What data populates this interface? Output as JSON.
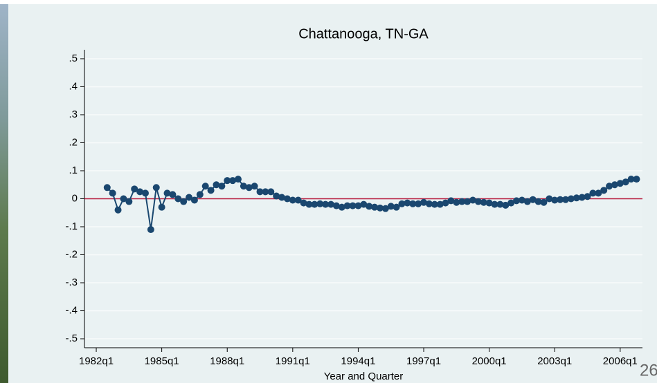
{
  "chart_data": {
    "type": "line",
    "title": "Chattanooga, TN-GA",
    "x_label": "Year and Quarter",
    "page_number": "26",
    "color": "#1a476f",
    "grid": true,
    "reference_line": {
      "value": 0,
      "color": "#b5173a"
    },
    "xlim": [
      1981.46,
      2007.02
    ],
    "ylim": [
      -0.532,
      0.532
    ],
    "xticks": [
      {
        "value": 1982,
        "label": "1982q1"
      },
      {
        "value": 1985,
        "label": "1985q1"
      },
      {
        "value": 1988,
        "label": "1988q1"
      },
      {
        "value": 1991,
        "label": "1991q1"
      },
      {
        "value": 1994,
        "label": "1994q1"
      },
      {
        "value": 1997,
        "label": "1997q1"
      },
      {
        "value": 2000,
        "label": "2000q1"
      },
      {
        "value": 2003,
        "label": "2003q1"
      },
      {
        "value": 2006,
        "label": "2006q1"
      }
    ],
    "yticks": [
      {
        "value": 0.5,
        "label": ".5"
      },
      {
        "value": 0.4,
        "label": ".4"
      },
      {
        "value": 0.3,
        "label": ".3"
      },
      {
        "value": 0.2,
        "label": ".2"
      },
      {
        "value": 0.1,
        "label": ".1"
      },
      0,
      {
        "value": -0.1,
        "label": "-.1"
      },
      {
        "value": -0.2,
        "label": "-.2"
      },
      {
        "value": -0.3,
        "label": "-.3"
      },
      {
        "value": -0.4,
        "label": "-.4"
      },
      {
        "value": -0.5,
        "label": "-.5"
      }
    ],
    "x": [
      1982.5,
      1982.75,
      1983,
      1983.25,
      1983.5,
      1983.75,
      1984,
      1984.25,
      1984.5,
      1984.75,
      1985,
      1985.25,
      1985.5,
      1985.75,
      1986,
      1986.25,
      1986.5,
      1986.75,
      1987,
      1987.25,
      1987.5,
      1987.75,
      1988,
      1988.25,
      1988.5,
      1988.75,
      1989,
      1989.25,
      1989.5,
      1989.75,
      1990,
      1990.25,
      1990.5,
      1990.75,
      1991,
      1991.25,
      1991.5,
      1991.75,
      1992,
      1992.25,
      1992.5,
      1992.75,
      1993,
      1993.25,
      1993.5,
      1993.75,
      1994,
      1994.25,
      1994.5,
      1994.75,
      1995,
      1995.25,
      1995.5,
      1995.75,
      1996,
      1996.25,
      1996.5,
      1996.75,
      1997,
      1997.25,
      1997.5,
      1997.75,
      1998,
      1998.25,
      1998.5,
      1998.75,
      1999,
      1999.25,
      1999.5,
      1999.75,
      2000,
      2000.25,
      2000.5,
      2000.75,
      2001,
      2001.25,
      2001.5,
      2001.75,
      2002,
      2002.25,
      2002.5,
      2002.75,
      2003,
      2003.25,
      2003.5,
      2003.75,
      2004,
      2004.25,
      2004.5,
      2004.75,
      2005,
      2005.25,
      2005.5,
      2005.75,
      2006,
      2006.25,
      2006.5,
      2006.75
    ],
    "values": [
      0.04,
      0.02,
      -0.04,
      0,
      -0.01,
      0.035,
      0.025,
      0.02,
      -0.11,
      0.04,
      -0.03,
      0.02,
      0.015,
      0,
      -0.01,
      0.005,
      -0.005,
      0.015,
      0.045,
      0.03,
      0.05,
      0.045,
      0.065,
      0.065,
      0.07,
      0.045,
      0.04,
      0.045,
      0.025,
      0.025,
      0.025,
      0.01,
      0.005,
      0,
      -0.005,
      -0.005,
      -0.015,
      -0.02,
      -0.02,
      -0.018,
      -0.02,
      -0.02,
      -0.025,
      -0.03,
      -0.025,
      -0.025,
      -0.025,
      -0.02,
      -0.027,
      -0.03,
      -0.033,
      -0.035,
      -0.027,
      -0.03,
      -0.018,
      -0.015,
      -0.018,
      -0.018,
      -0.013,
      -0.018,
      -0.02,
      -0.02,
      -0.015,
      -0.007,
      -0.013,
      -0.01,
      -0.01,
      -0.005,
      -0.01,
      -0.013,
      -0.015,
      -0.02,
      -0.02,
      -0.023,
      -0.015,
      -0.007,
      -0.005,
      -0.01,
      -0.003,
      -0.01,
      -0.013,
      0,
      -0.005,
      -0.003,
      -0.003,
      0,
      0.003,
      0.005,
      0.008,
      0.02,
      0.02,
      0.03,
      0.045,
      0.05,
      0.055,
      0.06,
      0.07,
      0.07
    ]
  }
}
